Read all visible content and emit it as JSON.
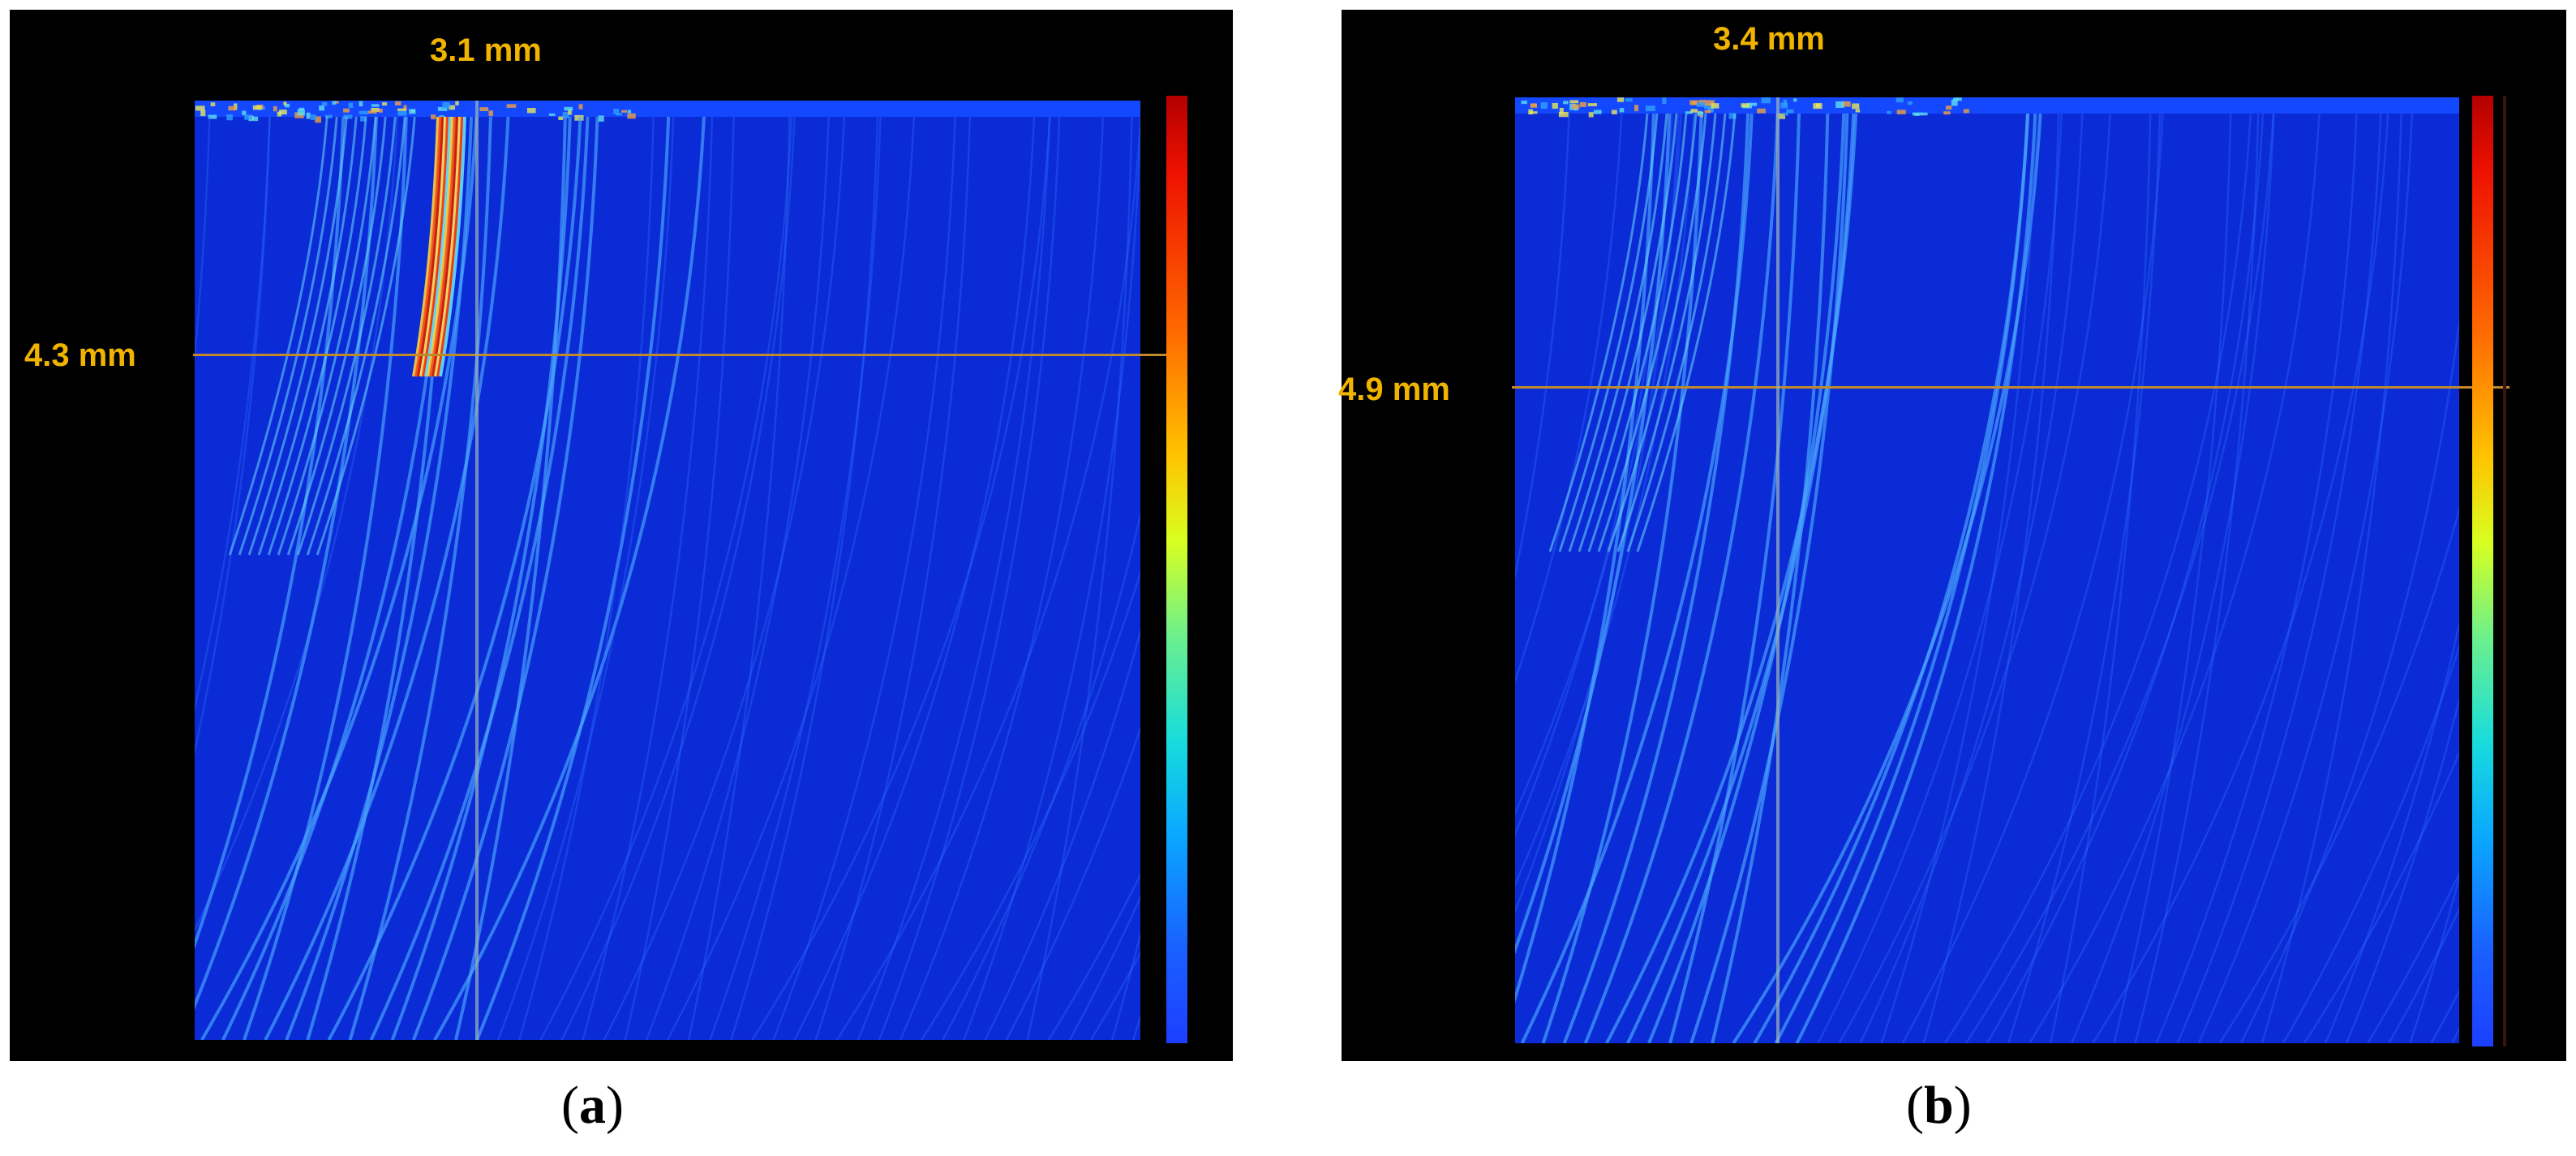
{
  "panels": [
    {
      "id": "a",
      "top_measurement": "3.1 mm",
      "side_measurement": "4.3 mm",
      "caption_letter": "a",
      "has_strong_reflection": true
    },
    {
      "id": "b",
      "top_measurement": "3.4 mm",
      "side_measurement": "4.9 mm",
      "caption_letter": "b",
      "has_strong_reflection": false
    }
  ],
  "colors": {
    "background_field": "#0b2bd6",
    "label_text": "#f0b400",
    "horizontal_cursor": "#c08a2a",
    "vertical_cursor": "#96afb9",
    "panel_background": "#000000"
  },
  "colorbar_stops": [
    "#b30000",
    "#ff6a00",
    "#ffc400",
    "#d8ff20",
    "#18dcdc",
    "#1a60ff"
  ]
}
